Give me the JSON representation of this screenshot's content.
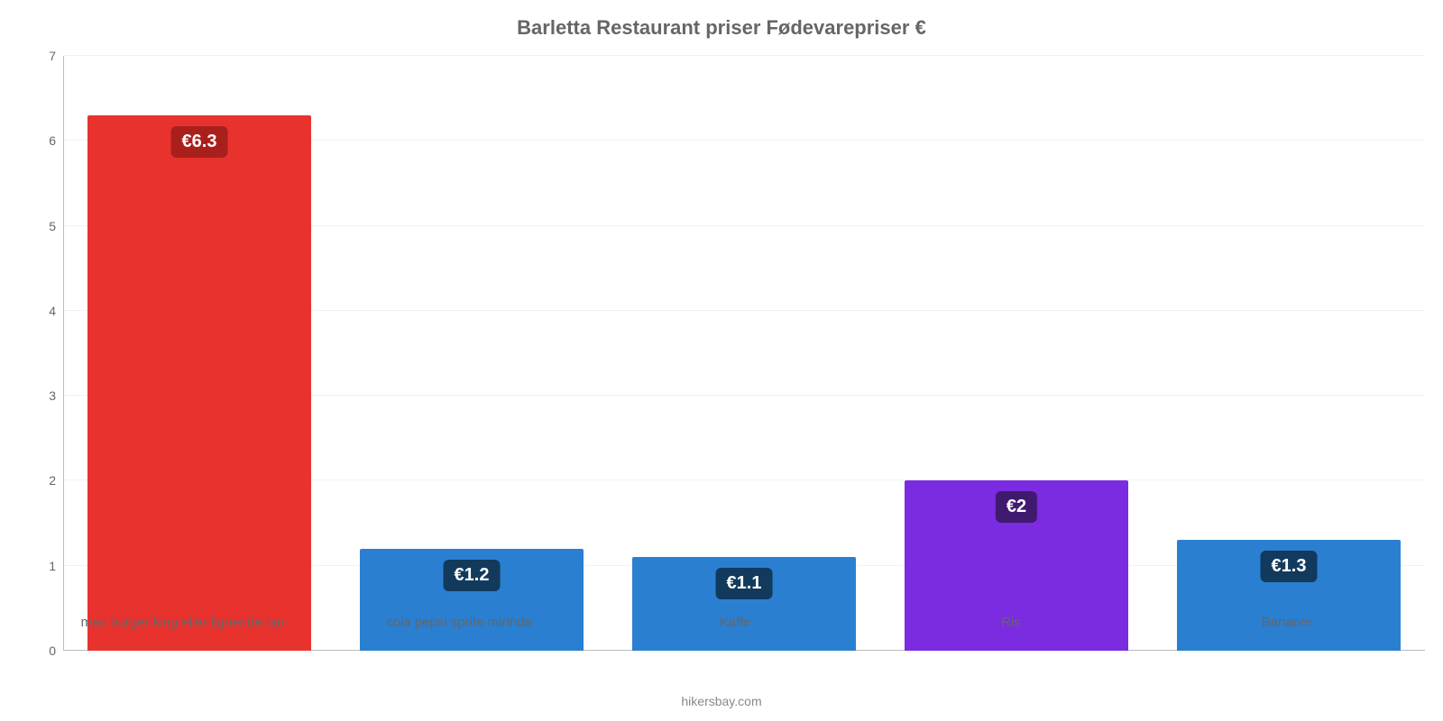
{
  "chart": {
    "type": "bar",
    "title": "Barletta Restaurant priser Fødevarepriser €",
    "title_fontsize": 22,
    "title_color": "#666666",
    "background_color": "#ffffff",
    "grid_color": "#f2f2f2",
    "axis_line_color": "#bbbbbb",
    "tick_label_color": "#666666",
    "tick_label_fontsize": 14,
    "x_label_fontsize": 15,
    "ylim": [
      0,
      7
    ],
    "yticks": [
      0,
      1,
      2,
      3,
      4,
      5,
      6,
      7
    ],
    "bar_width_pct": 82,
    "value_badge_fontsize": 20,
    "value_badge_radius": 6,
    "value_badge_offset_top": 12,
    "categories": [
      "mac burger king eller lignende bar",
      "cola pepsi sprite mirinda",
      "Kaffe",
      "Ris",
      "Bananer"
    ],
    "values": [
      6.3,
      1.2,
      1.1,
      2.0,
      1.3
    ],
    "value_labels": [
      "€6.3",
      "€1.2",
      "€1.1",
      "€2",
      "€1.3"
    ],
    "bar_colors": [
      "#e8322e",
      "#2a7fd1",
      "#2a7fd1",
      "#7b2be0",
      "#2a7fd1"
    ],
    "badge_colors": [
      "#a91f1c",
      "#123a5c",
      "#123a5c",
      "#3f1a6e",
      "#123a5c"
    ],
    "footer": "hikersbay.com",
    "footer_fontsize": 14,
    "footer_color": "#888888"
  }
}
